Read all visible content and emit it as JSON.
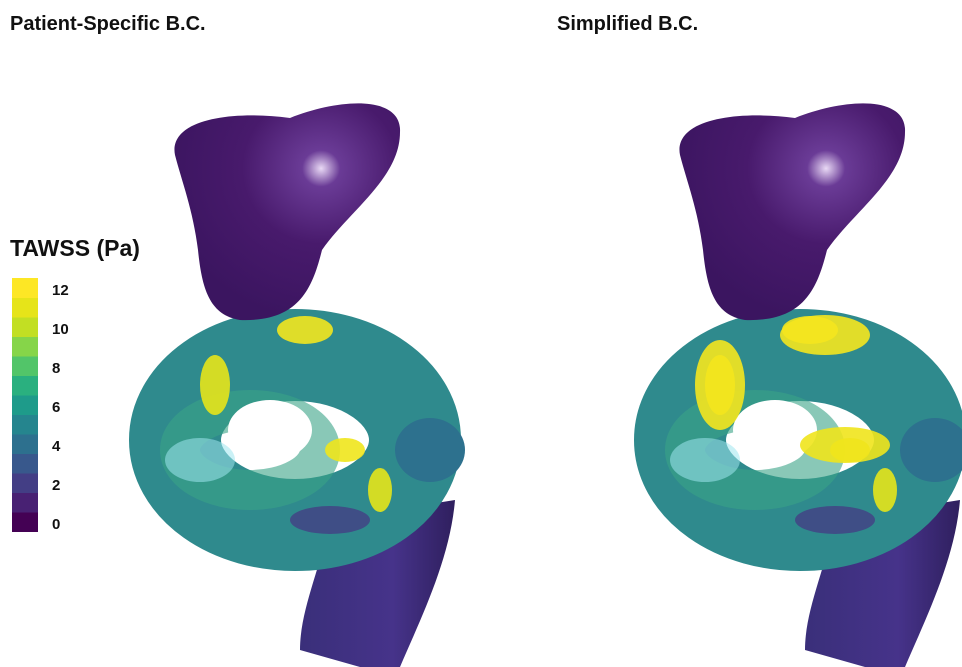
{
  "panels": [
    {
      "title": "Patient-Specific B.C."
    },
    {
      "title": "Simplified B.C."
    }
  ],
  "colorbar": {
    "label": "TAWSS (Pa)",
    "ticks": [
      12,
      10,
      8,
      6,
      4,
      2,
      0
    ]
  }
}
